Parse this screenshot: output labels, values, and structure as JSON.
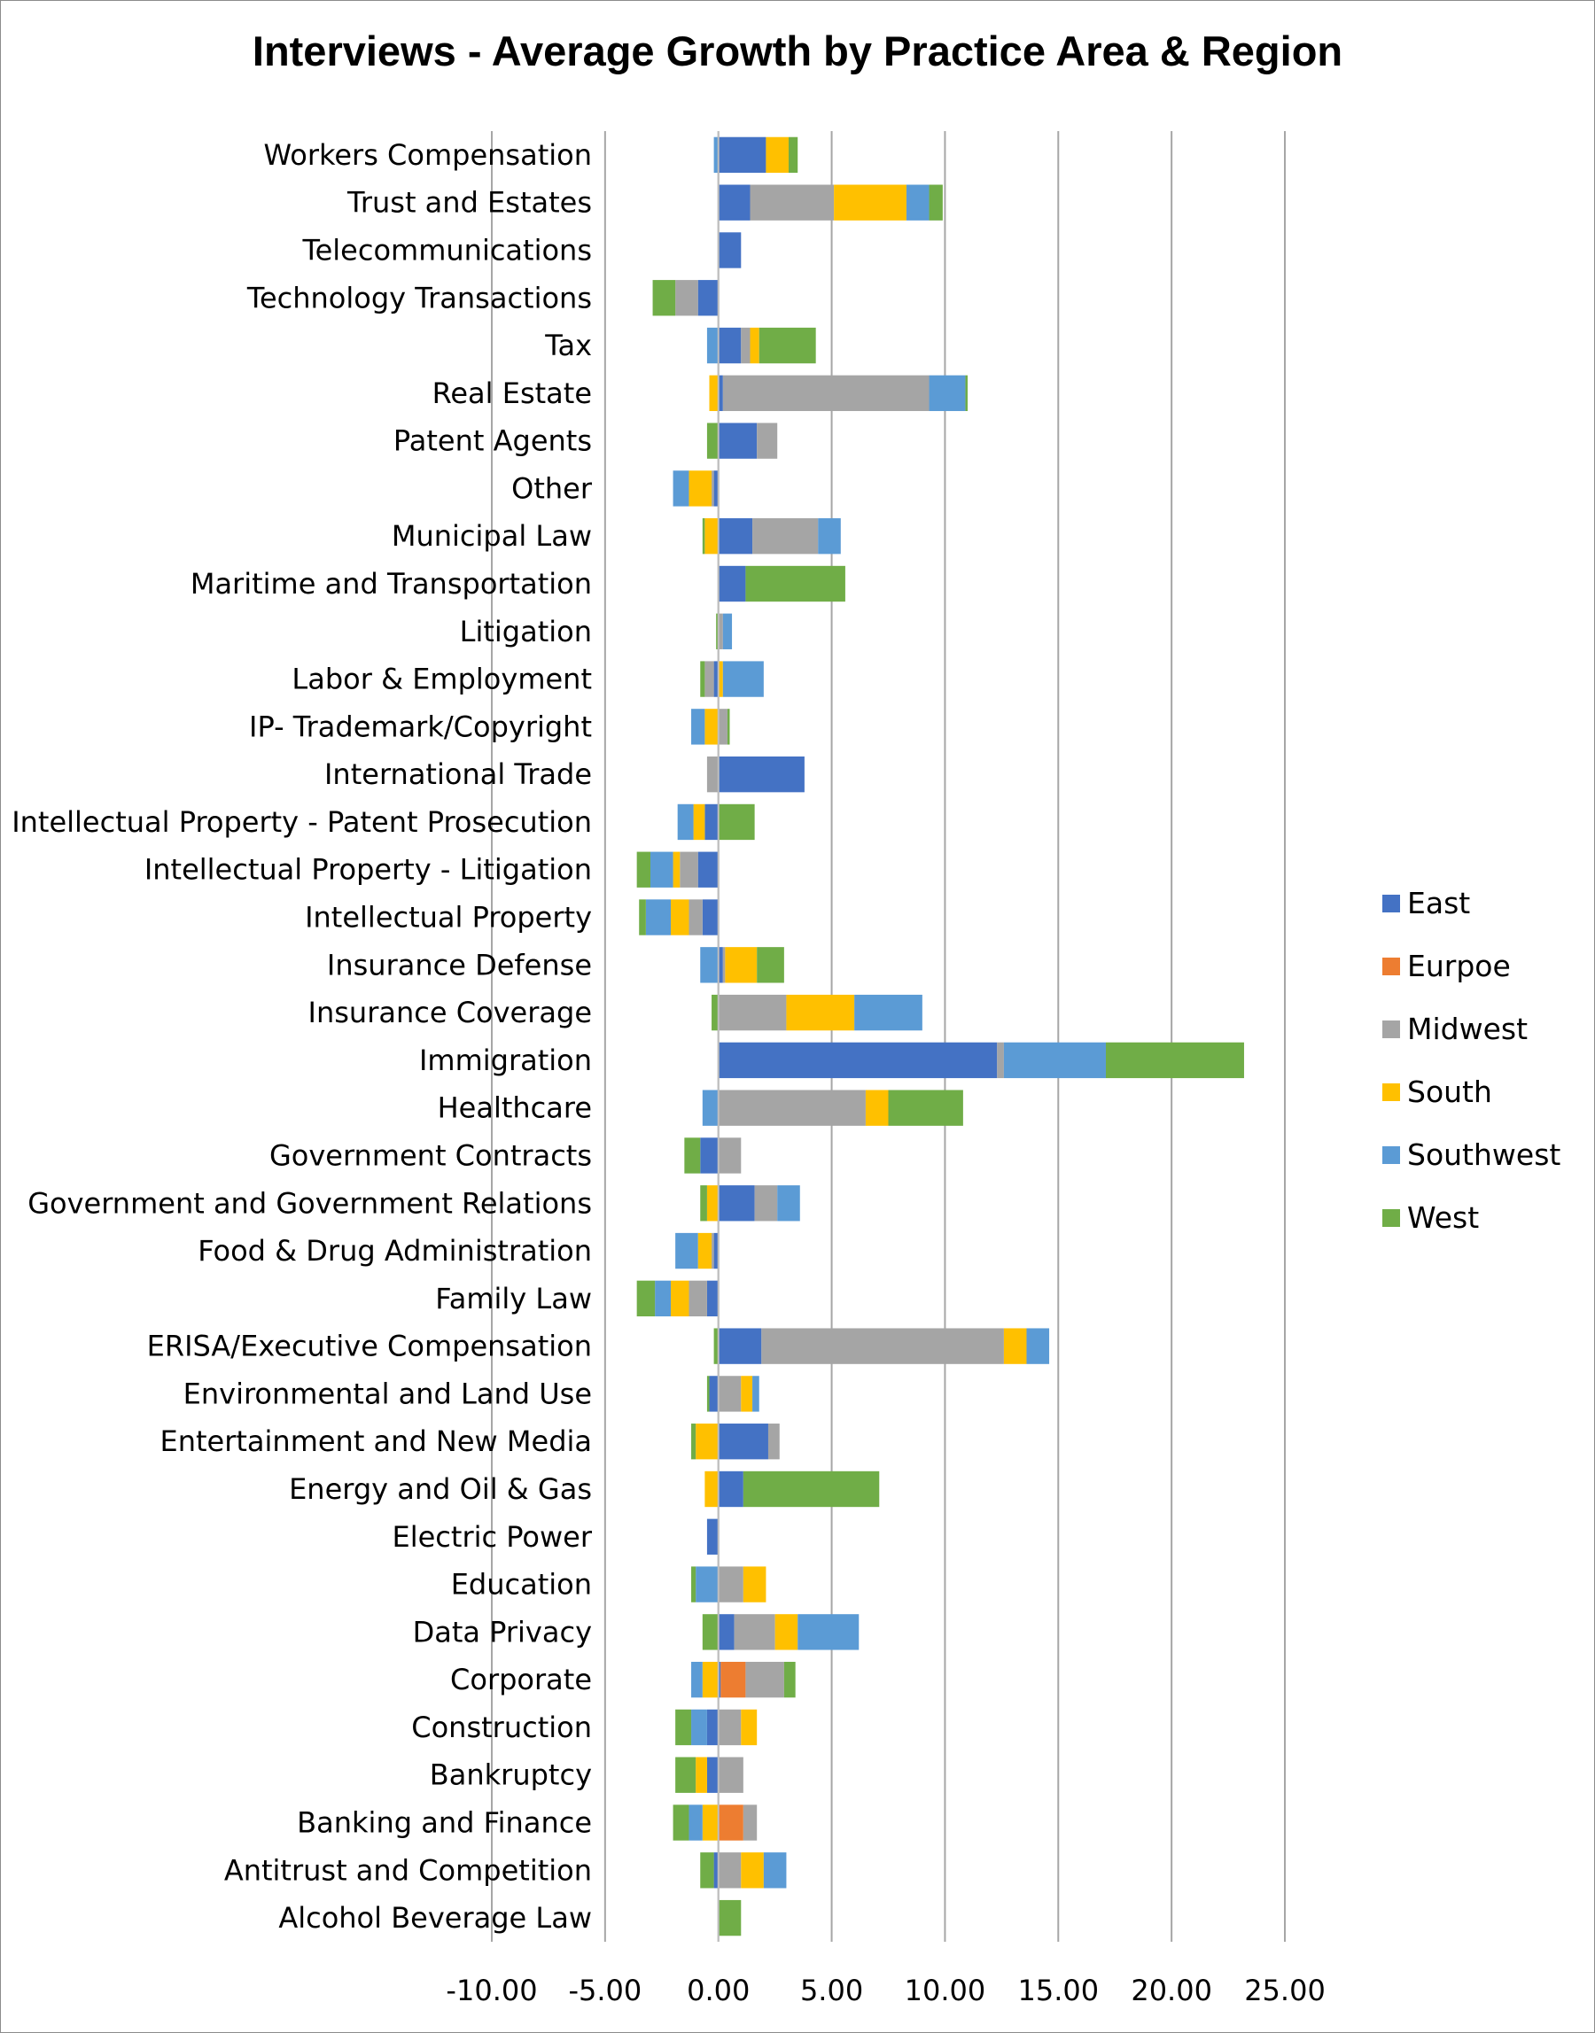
{
  "chart_data": {
    "type": "bar",
    "orientation": "horizontal",
    "stacked": true,
    "title": "Interviews - Average Growth by Practice Area & Region",
    "xlim": [
      -10,
      25
    ],
    "x_ticks": [
      "-10.00",
      "-5.00",
      "0.00",
      "5.00",
      "10.00",
      "15.00",
      "20.00",
      "25.00"
    ],
    "x_tick_values": [
      -10,
      -5,
      0,
      5,
      10,
      15,
      20,
      25
    ],
    "grid": "vertical",
    "legend_position": "right",
    "categories": [
      "Workers Compensation",
      "Trust and Estates",
      "Telecommunications",
      "Technology Transactions",
      "Tax",
      "Real Estate",
      "Patent Agents",
      "Other",
      "Municipal Law",
      "Maritime and Transportation",
      "Litigation",
      "Labor & Employment",
      "IP- Trademark/Copyright",
      "International Trade",
      "Intellectual Property - Patent Prosecution",
      "Intellectual Property - Litigation",
      "Intellectual Property",
      "Insurance Defense",
      "Insurance Coverage",
      "Immigration",
      "Healthcare",
      "Government Contracts",
      "Government and Government Relations",
      "Food & Drug Administration",
      "Family Law",
      "ERISA/Executive Compensation",
      "Environmental and Land Use",
      "Entertainment and New Media",
      "Energy and Oil & Gas",
      "Electric Power",
      "Education",
      "Data Privacy",
      "Corporate",
      "Construction",
      "Bankruptcy",
      "Banking and Finance",
      "Antitrust and Competition",
      "Alcohol Beverage Law"
    ],
    "series": [
      {
        "name": "East",
        "color": "#4472c4",
        "values": [
          2.1,
          1.4,
          1.0,
          -0.9,
          1.0,
          0.2,
          1.7,
          -0.2,
          1.5,
          1.2,
          0,
          -0.2,
          0,
          3.8,
          -0.6,
          -0.9,
          -0.7,
          0.2,
          0,
          12.3,
          0,
          -0.8,
          1.6,
          -0.2,
          -0.5,
          1.9,
          -0.4,
          2.2,
          1.1,
          -0.5,
          0,
          0.7,
          0.1,
          -0.5,
          -0.5,
          0,
          -0.2,
          0
        ]
      },
      {
        "name": "Eurpoe",
        "color": "#ed7d31",
        "values": [
          0,
          0,
          0,
          0,
          0,
          0,
          0,
          0,
          0,
          0,
          0,
          0,
          0,
          0,
          0,
          0,
          0,
          0,
          0,
          0,
          0,
          0,
          0,
          0,
          0,
          0,
          0,
          0,
          0,
          0,
          0,
          0,
          1.1,
          0,
          0,
          1.1,
          0,
          0
        ]
      },
      {
        "name": "Midwest",
        "color": "#a5a5a5",
        "values": [
          0,
          3.7,
          0,
          -1.0,
          0.4,
          9.1,
          0.9,
          -0.1,
          2.9,
          0,
          0.2,
          -0.4,
          0.4,
          -0.5,
          0,
          -0.8,
          -0.6,
          0.1,
          3.0,
          0.3,
          6.5,
          1.0,
          1.0,
          -0.1,
          -0.8,
          10.7,
          1.0,
          0.5,
          0,
          0,
          1.1,
          1.8,
          1.7,
          1.0,
          1.1,
          0.6,
          1.0,
          0
        ]
      },
      {
        "name": "South",
        "color": "#ffc000",
        "values": [
          1.0,
          3.2,
          0,
          0,
          0.4,
          -0.4,
          0,
          -1.0,
          -0.6,
          0,
          0,
          0.2,
          -0.6,
          0,
          -0.5,
          -0.3,
          -0.8,
          1.4,
          3.0,
          0,
          1.0,
          0,
          -0.5,
          -0.6,
          -0.8,
          1.0,
          0.5,
          -1.0,
          -0.6,
          0,
          1.0,
          1.0,
          -0.7,
          0.7,
          -0.5,
          -0.7,
          1.0,
          0
        ]
      },
      {
        "name": "Southwest",
        "color": "#5b9bd5",
        "values": [
          -0.2,
          1.0,
          0,
          0,
          -0.5,
          1.6,
          0,
          -0.7,
          1.0,
          0,
          0.4,
          1.8,
          -0.6,
          0,
          -0.7,
          -1.0,
          -1.1,
          -0.8,
          3.0,
          4.5,
          -0.7,
          0,
          1.0,
          -1.0,
          -0.7,
          1.0,
          0.3,
          0,
          0,
          0,
          -1.0,
          2.7,
          -0.5,
          -0.7,
          0,
          -0.6,
          1.0,
          0
        ]
      },
      {
        "name": "West",
        "color": "#70ad47",
        "values": [
          0.4,
          0.6,
          0,
          -1.0,
          2.5,
          0.1,
          -0.5,
          0,
          -0.1,
          4.4,
          -0.1,
          -0.2,
          0.1,
          0,
          1.6,
          -0.6,
          -0.3,
          1.2,
          -0.3,
          6.1,
          3.3,
          -0.7,
          -0.3,
          0,
          -0.8,
          -0.2,
          -0.1,
          -0.2,
          6.0,
          0,
          -0.2,
          -0.7,
          0.5,
          -0.7,
          -0.9,
          -0.7,
          -0.6,
          1.0
        ]
      }
    ]
  }
}
